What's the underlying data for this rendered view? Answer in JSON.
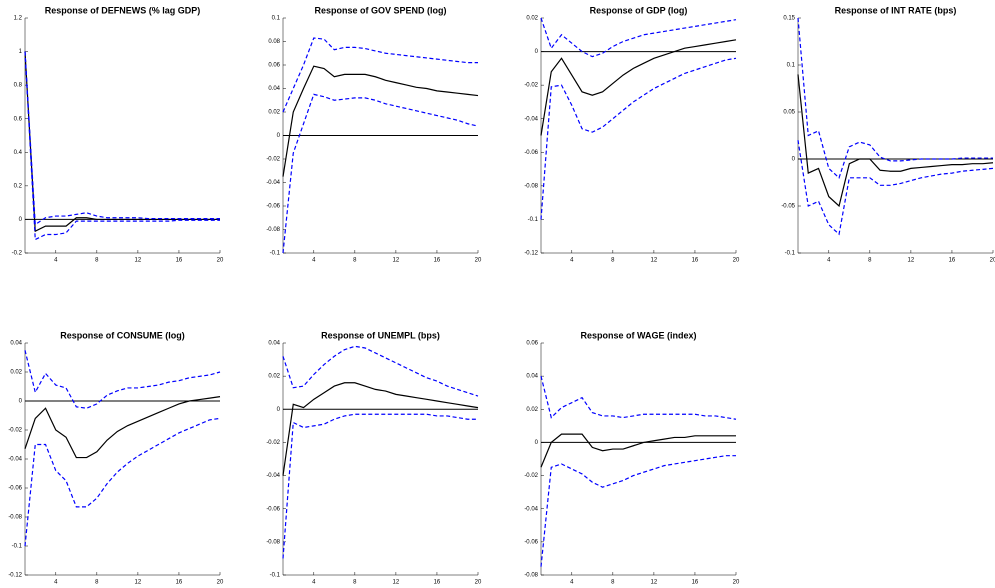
{
  "chart_data": [
    {
      "type": "line",
      "title": "Response of DEFNEWS (% lag GDP)",
      "x": [
        1,
        2,
        3,
        4,
        5,
        6,
        7,
        8,
        9,
        10,
        11,
        12,
        13,
        14,
        15,
        16,
        17,
        18,
        19,
        20
      ],
      "xlim": [
        1,
        20
      ],
      "xticks": [
        4,
        8,
        12,
        16,
        20
      ],
      "ylim": [
        -0.2,
        1.2
      ],
      "yticks": [
        -0.2,
        0,
        0.2,
        0.4,
        0.6,
        0.8,
        1,
        1.2
      ],
      "series": [
        {
          "color": "#000000",
          "style": "solid",
          "values": [
            1,
            -0.07,
            -0.04,
            -0.04,
            -0.04,
            0.01,
            0.01,
            0,
            0,
            0,
            0,
            0,
            0,
            0,
            0,
            0,
            0,
            0,
            0,
            0
          ]
        },
        {
          "color": "#0000ff",
          "style": "dashed",
          "values": [
            1,
            -0.12,
            -0.09,
            -0.09,
            -0.08,
            -0.01,
            -0.01,
            -0.01,
            -0.01,
            -0.01,
            -0.01,
            -0.01,
            -0.01,
            -0.01,
            -0.01,
            -0.005,
            -0.005,
            -0.005,
            -0.005,
            -0.005
          ]
        },
        {
          "color": "#0000ff",
          "style": "dashed",
          "values": [
            1,
            -0.03,
            0.01,
            0.02,
            0.02,
            0.03,
            0.04,
            0.02,
            0.01,
            0.01,
            0.01,
            0.01,
            0.005,
            0.005,
            0.005,
            0.005,
            0.005,
            0.005,
            0.005,
            0.005
          ]
        }
      ]
    },
    {
      "type": "line",
      "title": "Response of GOV SPEND (log)",
      "x": [
        1,
        2,
        3,
        4,
        5,
        6,
        7,
        8,
        9,
        10,
        11,
        12,
        13,
        14,
        15,
        16,
        17,
        18,
        19,
        20
      ],
      "xlim": [
        1,
        20
      ],
      "xticks": [
        4,
        8,
        12,
        16,
        20
      ],
      "ylim": [
        -0.1,
        0.1
      ],
      "yticks": [
        -0.1,
        -0.08,
        -0.06,
        -0.04,
        -0.02,
        0,
        0.02,
        0.04,
        0.06,
        0.08,
        0.1
      ],
      "series": [
        {
          "color": "#000000",
          "style": "solid",
          "values": [
            -0.035,
            0.02,
            0.04,
            0.059,
            0.057,
            0.05,
            0.052,
            0.052,
            0.052,
            0.05,
            0.047,
            0.045,
            0.043,
            0.041,
            0.04,
            0.038,
            0.037,
            0.036,
            0.035,
            0.034
          ]
        },
        {
          "color": "#0000ff",
          "style": "dashed",
          "values": [
            -0.1,
            -0.015,
            0.01,
            0.035,
            0.033,
            0.03,
            0.031,
            0.032,
            0.032,
            0.03,
            0.027,
            0.025,
            0.023,
            0.021,
            0.019,
            0.017,
            0.015,
            0.013,
            0.01,
            0.008
          ]
        },
        {
          "color": "#0000ff",
          "style": "dashed",
          "values": [
            0.02,
            0.04,
            0.06,
            0.083,
            0.082,
            0.073,
            0.075,
            0.075,
            0.074,
            0.072,
            0.07,
            0.069,
            0.068,
            0.067,
            0.066,
            0.065,
            0.064,
            0.063,
            0.062,
            0.062
          ]
        }
      ]
    },
    {
      "type": "line",
      "title": "Response of GDP (log)",
      "x": [
        1,
        2,
        3,
        4,
        5,
        6,
        7,
        8,
        9,
        10,
        11,
        12,
        13,
        14,
        15,
        16,
        17,
        18,
        19,
        20
      ],
      "xlim": [
        1,
        20
      ],
      "xticks": [
        4,
        8,
        12,
        16,
        20
      ],
      "ylim": [
        -0.12,
        0.02
      ],
      "yticks": [
        -0.12,
        -0.1,
        -0.08,
        -0.06,
        -0.04,
        -0.02,
        0,
        0.02
      ],
      "series": [
        {
          "color": "#000000",
          "style": "solid",
          "values": [
            -0.05,
            -0.012,
            -0.004,
            -0.014,
            -0.024,
            -0.026,
            -0.024,
            -0.019,
            -0.014,
            -0.01,
            -0.007,
            -0.004,
            -0.002,
            0,
            0.002,
            0.003,
            0.004,
            0.005,
            0.006,
            0.007
          ]
        },
        {
          "color": "#0000ff",
          "style": "dashed",
          "values": [
            -0.1,
            -0.021,
            -0.02,
            -0.032,
            -0.046,
            -0.048,
            -0.045,
            -0.04,
            -0.035,
            -0.03,
            -0.026,
            -0.022,
            -0.019,
            -0.016,
            -0.013,
            -0.011,
            -0.009,
            -0.007,
            -0.005,
            -0.004
          ]
        },
        {
          "color": "#0000ff",
          "style": "dashed",
          "values": [
            0.02,
            0.002,
            0.01,
            0.005,
            0,
            -0.003,
            -0.001,
            0.003,
            0.006,
            0.008,
            0.01,
            0.011,
            0.012,
            0.013,
            0.014,
            0.015,
            0.016,
            0.017,
            0.018,
            0.019
          ]
        }
      ]
    },
    {
      "type": "line",
      "title": "Response of INT RATE (bps)",
      "x": [
        1,
        2,
        3,
        4,
        5,
        6,
        7,
        8,
        9,
        10,
        11,
        12,
        13,
        14,
        15,
        16,
        17,
        18,
        19,
        20
      ],
      "xlim": [
        1,
        20
      ],
      "xticks": [
        4,
        8,
        12,
        16,
        20
      ],
      "ylim": [
        -0.1,
        0.15
      ],
      "yticks": [
        -0.1,
        -0.05,
        0,
        0.05,
        0.1,
        0.15
      ],
      "series": [
        {
          "color": "#000000",
          "style": "solid",
          "values": [
            0.09,
            -0.015,
            -0.01,
            -0.04,
            -0.05,
            -0.005,
            0,
            0,
            -0.012,
            -0.013,
            -0.013,
            -0.01,
            -0.009,
            -0.008,
            -0.007,
            -0.006,
            -0.006,
            -0.005,
            -0.005,
            -0.004
          ]
        },
        {
          "color": "#0000ff",
          "style": "dashed",
          "values": [
            0.02,
            -0.05,
            -0.045,
            -0.07,
            -0.08,
            -0.02,
            -0.02,
            -0.02,
            -0.028,
            -0.028,
            -0.026,
            -0.023,
            -0.02,
            -0.018,
            -0.016,
            -0.015,
            -0.013,
            -0.012,
            -0.011,
            -0.01
          ]
        },
        {
          "color": "#0000ff",
          "style": "dashed",
          "values": [
            0.15,
            0.025,
            0.03,
            -0.01,
            -0.02,
            0.013,
            0.018,
            0.015,
            0.002,
            -0.002,
            -0.002,
            -0.001,
            0,
            0,
            0,
            0,
            0.001,
            0.001,
            0.001,
            0.001
          ]
        }
      ]
    },
    {
      "type": "line",
      "title": "Response of CONSUME (log)",
      "x": [
        1,
        2,
        3,
        4,
        5,
        6,
        7,
        8,
        9,
        10,
        11,
        12,
        13,
        14,
        15,
        16,
        17,
        18,
        19,
        20
      ],
      "xlim": [
        1,
        20
      ],
      "xticks": [
        4,
        8,
        12,
        16,
        20
      ],
      "ylim": [
        -0.12,
        0.04
      ],
      "yticks": [
        -0.12,
        -0.1,
        -0.08,
        -0.06,
        -0.04,
        -0.02,
        0,
        0.02,
        0.04
      ],
      "series": [
        {
          "color": "#000000",
          "style": "solid",
          "values": [
            -0.033,
            -0.012,
            -0.005,
            -0.02,
            -0.025,
            -0.039,
            -0.039,
            -0.035,
            -0.027,
            -0.021,
            -0.017,
            -0.014,
            -0.011,
            -0.008,
            -0.005,
            -0.002,
            0,
            0.001,
            0.002,
            0.003
          ]
        },
        {
          "color": "#0000ff",
          "style": "dashed",
          "values": [
            -0.1,
            -0.03,
            -0.03,
            -0.048,
            -0.055,
            -0.073,
            -0.073,
            -0.067,
            -0.057,
            -0.049,
            -0.043,
            -0.038,
            -0.034,
            -0.03,
            -0.026,
            -0.022,
            -0.019,
            -0.016,
            -0.013,
            -0.012
          ]
        },
        {
          "color": "#0000ff",
          "style": "dashed",
          "values": [
            0.035,
            0.006,
            0.019,
            0.011,
            0.009,
            -0.004,
            -0.005,
            -0.002,
            0.004,
            0.007,
            0.009,
            0.009,
            0.01,
            0.011,
            0.013,
            0.014,
            0.016,
            0.017,
            0.018,
            0.02
          ]
        }
      ]
    },
    {
      "type": "line",
      "title": "Response of UNEMPL (bps)",
      "x": [
        1,
        2,
        3,
        4,
        5,
        6,
        7,
        8,
        9,
        10,
        11,
        12,
        13,
        14,
        15,
        16,
        17,
        18,
        19,
        20
      ],
      "xlim": [
        1,
        20
      ],
      "xticks": [
        4,
        8,
        12,
        16,
        20
      ],
      "ylim": [
        -0.1,
        0.04
      ],
      "yticks": [
        -0.1,
        -0.08,
        -0.06,
        -0.04,
        -0.02,
        0,
        0.02,
        0.04
      ],
      "series": [
        {
          "color": "#000000",
          "style": "solid",
          "values": [
            -0.04,
            0.003,
            0.001,
            0.006,
            0.01,
            0.014,
            0.016,
            0.016,
            0.014,
            0.012,
            0.011,
            0.009,
            0.008,
            0.007,
            0.006,
            0.005,
            0.004,
            0.003,
            0.002,
            0.001
          ]
        },
        {
          "color": "#0000ff",
          "style": "dashed",
          "values": [
            -0.09,
            -0.008,
            -0.011,
            -0.01,
            -0.009,
            -0.006,
            -0.004,
            -0.003,
            -0.003,
            -0.003,
            -0.003,
            -0.003,
            -0.003,
            -0.003,
            -0.003,
            -0.004,
            -0.004,
            -0.005,
            -0.006,
            -0.006
          ]
        },
        {
          "color": "#0000ff",
          "style": "dashed",
          "values": [
            0.032,
            0.013,
            0.014,
            0.021,
            0.027,
            0.032,
            0.036,
            0.038,
            0.037,
            0.034,
            0.031,
            0.028,
            0.025,
            0.022,
            0.019,
            0.017,
            0.014,
            0.012,
            0.01,
            0.008
          ]
        }
      ]
    },
    {
      "type": "line",
      "title": "Response of WAGE (index)",
      "x": [
        1,
        2,
        3,
        4,
        5,
        6,
        7,
        8,
        9,
        10,
        11,
        12,
        13,
        14,
        15,
        16,
        17,
        18,
        19,
        20
      ],
      "xlim": [
        1,
        20
      ],
      "xticks": [
        4,
        8,
        12,
        16,
        20
      ],
      "ylim": [
        -0.08,
        0.06
      ],
      "yticks": [
        -0.08,
        -0.06,
        -0.04,
        -0.02,
        0,
        0.02,
        0.04,
        0.06
      ],
      "series": [
        {
          "color": "#000000",
          "style": "solid",
          "values": [
            -0.015,
            0,
            0.005,
            0.005,
            0.005,
            -0.003,
            -0.005,
            -0.004,
            -0.004,
            -0.002,
            0,
            0.001,
            0.002,
            0.003,
            0.003,
            0.004,
            0.004,
            0.004,
            0.004,
            0.004
          ]
        },
        {
          "color": "#0000ff",
          "style": "dashed",
          "values": [
            -0.075,
            -0.015,
            -0.013,
            -0.016,
            -0.019,
            -0.024,
            -0.027,
            -0.025,
            -0.023,
            -0.02,
            -0.018,
            -0.016,
            -0.014,
            -0.013,
            -0.012,
            -0.011,
            -0.01,
            -0.009,
            -0.008,
            -0.008
          ]
        },
        {
          "color": "#0000ff",
          "style": "dashed",
          "values": [
            0.04,
            0.015,
            0.021,
            0.024,
            0.027,
            0.018,
            0.016,
            0.016,
            0.015,
            0.016,
            0.017,
            0.017,
            0.017,
            0.017,
            0.017,
            0.017,
            0.016,
            0.016,
            0.015,
            0.014
          ]
        }
      ]
    }
  ]
}
